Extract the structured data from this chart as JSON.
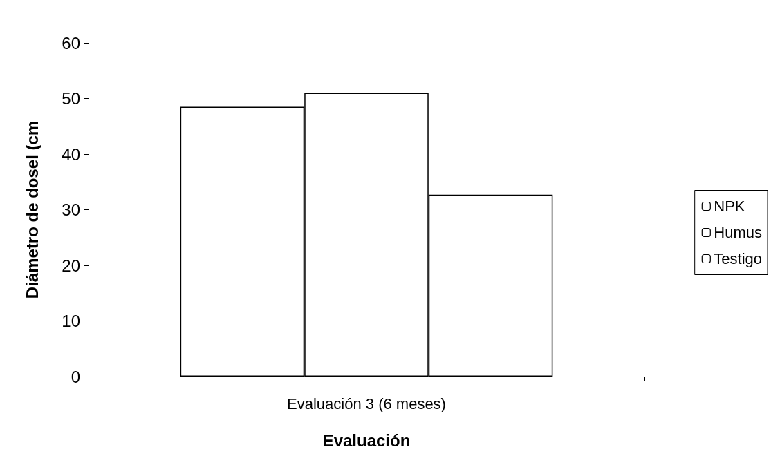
{
  "chart_data": {
    "type": "bar",
    "xlabel": "Evaluación",
    "ylabel": "Diámetro de dosel (cm",
    "categories": [
      "Evaluación 3 (6 meses)"
    ],
    "series": [
      {
        "name": "NPK",
        "color": "#ffffff",
        "values": [
          48.5
        ]
      },
      {
        "name": "Humus",
        "color": "#ffffff",
        "values": [
          51.0
        ]
      },
      {
        "name": "Testigo",
        "color": "#ffffff",
        "values": [
          32.7
        ]
      }
    ],
    "ylim": [
      0,
      60
    ],
    "yticks": [
      0,
      10,
      20,
      30,
      40,
      50,
      60
    ],
    "grid": false,
    "legend": "right"
  }
}
